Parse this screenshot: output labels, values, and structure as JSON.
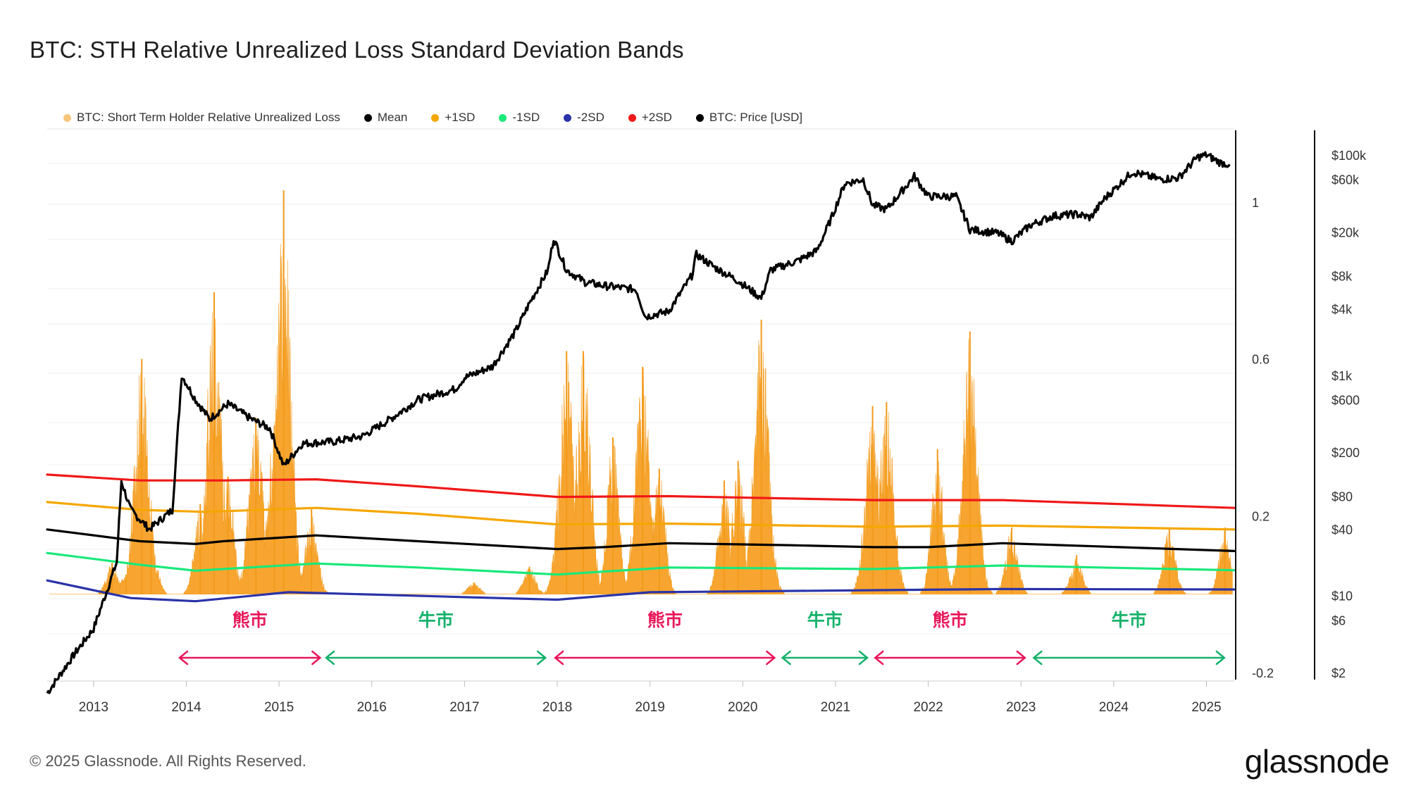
{
  "title": "BTC: STH Relative Unrealized Loss Standard Deviation Bands",
  "footer": "© 2025 Glassnode. All Rights Reserved.",
  "brand": "glassnode",
  "legend": [
    {
      "label": "BTC: Short Term Holder Relative Unrealized Loss",
      "color": "#f7c47a"
    },
    {
      "label": "Mean",
      "color": "#000000"
    },
    {
      "label": "+1SD",
      "color": "#f5a700"
    },
    {
      "label": "-1SD",
      "color": "#19e87a"
    },
    {
      "label": "-2SD",
      "color": "#2a33a8"
    },
    {
      "label": "+2SD",
      "color": "#f01818"
    },
    {
      "label": "BTC: Price [USD]",
      "color": "#000000"
    }
  ],
  "chart_data": {
    "type": "area",
    "x_ticks": [
      "2013",
      "2014",
      "2015",
      "2016",
      "2017",
      "2018",
      "2019",
      "2020",
      "2021",
      "2022",
      "2023",
      "2024",
      "2025"
    ],
    "y_left_ticks": [
      "1",
      "0.6",
      "0.2",
      "-0.2"
    ],
    "y_left_range": [
      -0.2,
      1.1
    ],
    "y_right_ticks": [
      "$100k",
      "$60k",
      "$20k",
      "$8k",
      "$4k",
      "$1k",
      "$600",
      "$200",
      "$80",
      "$40",
      "$10",
      "$6",
      "$2"
    ],
    "y_right_scale": "log",
    "series": [
      {
        "name": "BTC: Short Term Holder Relative Unrealized Loss",
        "color": "#f7a125",
        "peaks": [
          {
            "date": 2013.2,
            "value": 0.08
          },
          {
            "date": 2013.35,
            "value": 0.05
          },
          {
            "date": 2013.52,
            "value": 0.6
          },
          {
            "date": 2013.62,
            "value": 0.14
          },
          {
            "date": 2014.15,
            "value": 0.23
          },
          {
            "date": 2014.3,
            "value": 0.77
          },
          {
            "date": 2014.45,
            "value": 0.3
          },
          {
            "date": 2014.75,
            "value": 0.45
          },
          {
            "date": 2014.95,
            "value": 0.43
          },
          {
            "date": 2015.05,
            "value": 1.03
          },
          {
            "date": 2015.35,
            "value": 0.22
          },
          {
            "date": 2017.1,
            "value": 0.03
          },
          {
            "date": 2017.7,
            "value": 0.07
          },
          {
            "date": 2018.1,
            "value": 0.62
          },
          {
            "date": 2018.28,
            "value": 0.62
          },
          {
            "date": 2018.6,
            "value": 0.4
          },
          {
            "date": 2018.92,
            "value": 0.58
          },
          {
            "date": 2019.1,
            "value": 0.32
          },
          {
            "date": 2019.8,
            "value": 0.29
          },
          {
            "date": 2019.95,
            "value": 0.34
          },
          {
            "date": 2020.2,
            "value": 0.7
          },
          {
            "date": 2021.4,
            "value": 0.48
          },
          {
            "date": 2021.55,
            "value": 0.49
          },
          {
            "date": 2022.1,
            "value": 0.37
          },
          {
            "date": 2022.45,
            "value": 0.67
          },
          {
            "date": 2022.9,
            "value": 0.17
          },
          {
            "date": 2023.6,
            "value": 0.1
          },
          {
            "date": 2024.6,
            "value": 0.17
          },
          {
            "date": 2025.2,
            "value": 0.17
          }
        ]
      },
      {
        "name": "Mean",
        "color": "#000000",
        "points": [
          [
            2012.5,
            0.165
          ],
          [
            2013.5,
            0.135
          ],
          [
            2014.1,
            0.128
          ],
          [
            2014.4,
            0.135
          ],
          [
            2015.4,
            0.15
          ],
          [
            2016.5,
            0.135
          ],
          [
            2018.0,
            0.115
          ],
          [
            2018.5,
            0.12
          ],
          [
            2019.2,
            0.13
          ],
          [
            2020.5,
            0.125
          ],
          [
            2021.4,
            0.12
          ],
          [
            2022.0,
            0.12
          ],
          [
            2022.8,
            0.13
          ],
          [
            2025.3,
            0.11
          ]
        ]
      },
      {
        "name": "+1SD",
        "color": "#f5a700",
        "points": [
          [
            2012.5,
            0.235
          ],
          [
            2013.5,
            0.215
          ],
          [
            2014.2,
            0.21
          ],
          [
            2015.4,
            0.22
          ],
          [
            2016.5,
            0.205
          ],
          [
            2018.0,
            0.178
          ],
          [
            2019.2,
            0.18
          ],
          [
            2021.4,
            0.172
          ],
          [
            2022.8,
            0.175
          ],
          [
            2025.3,
            0.165
          ]
        ]
      },
      {
        "name": "+2SD",
        "color": "#f01818",
        "points": [
          [
            2012.5,
            0.305
          ],
          [
            2013.5,
            0.29
          ],
          [
            2014.4,
            0.29
          ],
          [
            2015.4,
            0.293
          ],
          [
            2016.5,
            0.275
          ],
          [
            2018.0,
            0.248
          ],
          [
            2019.2,
            0.25
          ],
          [
            2021.4,
            0.24
          ],
          [
            2022.8,
            0.24
          ],
          [
            2025.3,
            0.22
          ]
        ]
      },
      {
        "name": "-1SD",
        "color": "#19e87a",
        "points": [
          [
            2012.5,
            0.105
          ],
          [
            2013.5,
            0.075
          ],
          [
            2014.1,
            0.06
          ],
          [
            2015.4,
            0.078
          ],
          [
            2016.5,
            0.068
          ],
          [
            2018.0,
            0.05
          ],
          [
            2019.2,
            0.068
          ],
          [
            2021.4,
            0.064
          ],
          [
            2022.8,
            0.073
          ],
          [
            2025.3,
            0.061
          ]
        ]
      },
      {
        "name": "-2SD",
        "color": "#2a33a8",
        "points": [
          [
            2012.5,
            0.035
          ],
          [
            2013.4,
            -0.01
          ],
          [
            2014.1,
            -0.018
          ],
          [
            2015.1,
            0.005
          ],
          [
            2018.0,
            -0.014
          ],
          [
            2019.0,
            0.005
          ],
          [
            2022.8,
            0.013
          ],
          [
            2025.3,
            0.012
          ]
        ]
      },
      {
        "name": "BTC: Price [USD]",
        "color": "#000000",
        "points": [
          [
            2012.5,
            1.3
          ],
          [
            2012.8,
            3
          ],
          [
            2013.0,
            5
          ],
          [
            2013.25,
            20
          ],
          [
            2013.3,
            110
          ],
          [
            2013.4,
            60
          ],
          [
            2013.6,
            40
          ],
          [
            2013.85,
            60
          ],
          [
            2013.95,
            1000
          ],
          [
            2014.1,
            600
          ],
          [
            2014.25,
            400
          ],
          [
            2014.45,
            550
          ],
          [
            2014.7,
            400
          ],
          [
            2014.9,
            330
          ],
          [
            2015.05,
            150
          ],
          [
            2015.25,
            240
          ],
          [
            2015.6,
            250
          ],
          [
            2015.9,
            280
          ],
          [
            2016.2,
            400
          ],
          [
            2016.5,
            600
          ],
          [
            2016.9,
            750
          ],
          [
            2017.0,
            950
          ],
          [
            2017.3,
            1200
          ],
          [
            2017.55,
            2500
          ],
          [
            2017.7,
            4500
          ],
          [
            2017.9,
            9000
          ],
          [
            2017.96,
            17500
          ],
          [
            2018.1,
            9000
          ],
          [
            2018.3,
            7000
          ],
          [
            2018.5,
            6500
          ],
          [
            2018.85,
            6000
          ],
          [
            2018.95,
            3400
          ],
          [
            2019.2,
            3800
          ],
          [
            2019.45,
            8000
          ],
          [
            2019.5,
            12500
          ],
          [
            2019.7,
            9500
          ],
          [
            2019.95,
            7200
          ],
          [
            2020.2,
            5000
          ],
          [
            2020.3,
            9000
          ],
          [
            2020.6,
            11000
          ],
          [
            2020.8,
            13500
          ],
          [
            2020.95,
            26000
          ],
          [
            2021.1,
            55000
          ],
          [
            2021.3,
            60000
          ],
          [
            2021.4,
            35000
          ],
          [
            2021.55,
            32000
          ],
          [
            2021.85,
            64000
          ],
          [
            2022.0,
            42000
          ],
          [
            2022.3,
            42000
          ],
          [
            2022.45,
            21000
          ],
          [
            2022.75,
            19500
          ],
          [
            2022.9,
            16500
          ],
          [
            2023.1,
            23000
          ],
          [
            2023.35,
            28000
          ],
          [
            2023.6,
            29000
          ],
          [
            2023.75,
            27000
          ],
          [
            2023.9,
            40000
          ],
          [
            2024.2,
            70000
          ],
          [
            2024.5,
            60000
          ],
          [
            2024.7,
            62000
          ],
          [
            2024.9,
            95000
          ],
          [
            2025.0,
            100000
          ],
          [
            2025.15,
            85000
          ],
          [
            2025.25,
            82000
          ]
        ]
      }
    ],
    "regimes": [
      {
        "label": "熊市",
        "from": 2013.92,
        "to": 2015.45,
        "color": "#e8185a"
      },
      {
        "label": "牛市",
        "from": 2015.5,
        "to": 2017.88,
        "color": "#15b26b"
      },
      {
        "label": "熊市",
        "from": 2017.97,
        "to": 2020.35,
        "color": "#e8185a"
      },
      {
        "label": "牛市",
        "from": 2020.42,
        "to": 2021.35,
        "color": "#15b26b"
      },
      {
        "label": "熊市",
        "from": 2021.42,
        "to": 2023.05,
        "color": "#e8185a"
      },
      {
        "label": "牛市",
        "from": 2023.13,
        "to": 2025.2,
        "color": "#15b26b"
      }
    ]
  }
}
